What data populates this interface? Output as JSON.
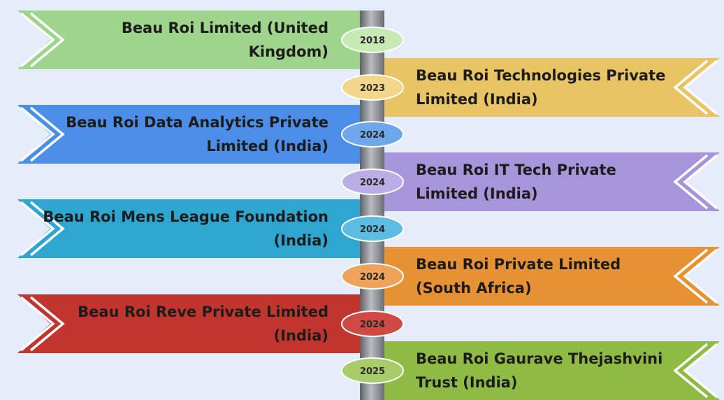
{
  "entries": [
    {
      "year": "2018",
      "name": "Beau Roi Limited (United Kingdom)",
      "side": "left",
      "color": "#9ed48b",
      "badge": "#c8e8b4"
    },
    {
      "year": "2023",
      "name": "Beau Roi Technologies Private Limited (India)",
      "side": "right",
      "color": "#e8c465",
      "badge": "#f3d68a"
    },
    {
      "year": "2024",
      "name": "Beau Roi Data Analytics Private Limited (India)",
      "side": "left",
      "color": "#4a8ee8",
      "badge": "#6ea8ec"
    },
    {
      "year": "2024",
      "name": "Beau Roi IT Tech Private Limited (India)",
      "side": "right",
      "color": "#a695db",
      "badge": "#bbaee6"
    },
    {
      "year": "2024",
      "name": "Beau Roi Mens League Foundation (India)",
      "side": "left",
      "color": "#2ea6d0",
      "badge": "#5dbde0"
    },
    {
      "year": "2024",
      "name": "Beau Roi Private Limited (South Africa)",
      "side": "right",
      "color": "#e69234",
      "badge": "#eda45a"
    },
    {
      "year": "2024",
      "name": "Beau Roi Reve Private Limited (India)",
      "side": "left",
      "color": "#c0362f",
      "badge": "#cf4a42"
    },
    {
      "year": "2025",
      "name": "Beau Roi Gaurave Thejashvini Trust (India)",
      "side": "right",
      "color": "#8fbb45",
      "badge": "#a9cc6b"
    }
  ]
}
